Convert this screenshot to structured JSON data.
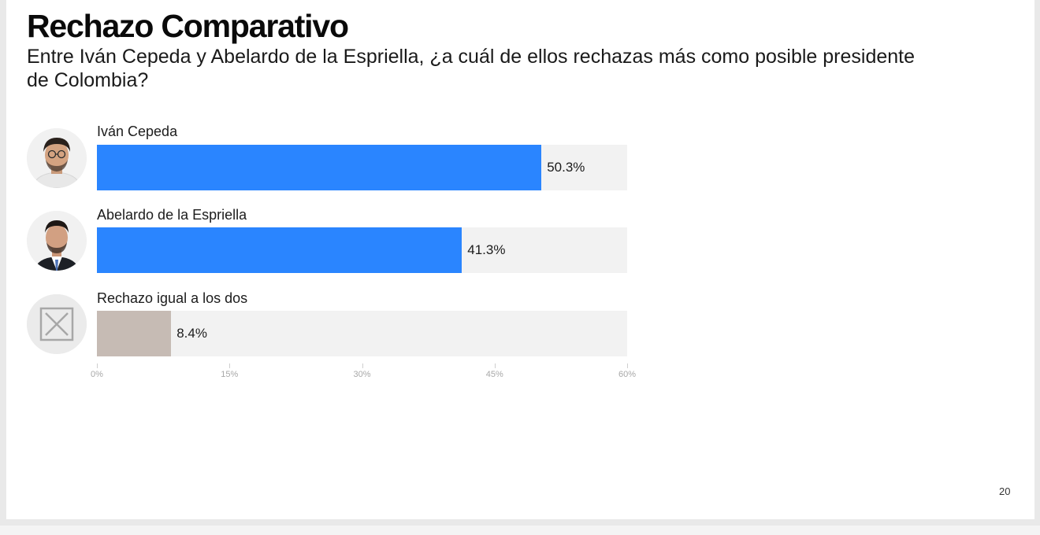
{
  "slide": {
    "title": "Rechazo Comparativo",
    "subtitle": "Entre Iván Cepeda y Abelardo de la Espriella, ¿a cuál de ellos rechazas más como posible presidente de Colombia?",
    "page_number": "20"
  },
  "rows": [
    {
      "label": "Iván Cepeda",
      "value_label": "50.3%",
      "avatar": "person-photo-icon",
      "color": "#2a85ff"
    },
    {
      "label": "Abelardo de la Espriella",
      "value_label": "41.3%",
      "avatar": "person-photo-icon",
      "color": "#2a85ff"
    },
    {
      "label": "Rechazo igual a los dos",
      "value_label": "8.4%",
      "avatar": "crossed-box-icon",
      "color": "#c6bbb4"
    }
  ],
  "chart_data": {
    "type": "bar",
    "orientation": "horizontal",
    "title": "Rechazo Comparativo",
    "subtitle": "Entre Iván Cepeda y Abelardo de la Espriella, ¿a cuál de ellos rechazas más como posible presidente de Colombia?",
    "categories": [
      "Iván Cepeda",
      "Abelardo de la Espriella",
      "Rechazo igual a los dos"
    ],
    "values": [
      50.3,
      41.3,
      8.4
    ],
    "data_labels": [
      "50.3%",
      "41.3%",
      "8.4%"
    ],
    "colors": [
      "#2a85ff",
      "#2a85ff",
      "#c6bbb4"
    ],
    "track_color": "#f2f2f2",
    "xlim": [
      0,
      60
    ],
    "x_ticks": [
      0,
      15,
      30,
      45,
      60
    ],
    "x_tick_labels": [
      "0%",
      "15%",
      "30%",
      "45%",
      "60%"
    ],
    "xlabel": "",
    "ylabel": "",
    "grid": false,
    "legend": "none"
  }
}
